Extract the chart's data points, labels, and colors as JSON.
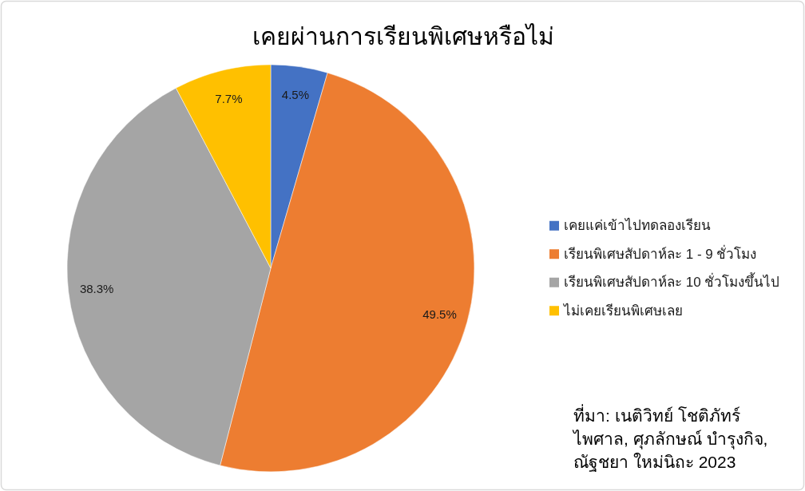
{
  "chart_data": {
    "type": "pie",
    "title": "เคยผ่านการเรียนพิเศษหรือไม่",
    "categories": [
      "เคยแค่เข้าไปทดลองเรียน",
      "เรียนพิเศษสัปดาห์ละ 1 - 9 ชั่วโมง",
      "เรียนพิเศษสัปดาห์ละ 10 ชั่วโมงขึ้นไป",
      "ไม่เคยเรียนพิเศษเลย"
    ],
    "values": [
      4.5,
      49.5,
      38.3,
      7.7
    ],
    "colors": [
      "#4472c4",
      "#ed7d31",
      "#a5a5a5",
      "#ffc000"
    ],
    "value_labels": [
      "4.5%",
      "49.5%",
      "38.3%",
      "7.7%"
    ],
    "legend": "right",
    "annotations": [
      "ที่มา: เนติวิทย์ โชติภัทร์ไพศาล, ศุภลักษณ์ บำรุงกิจ, ณัฐชยา ใหม่นิถะ 2023"
    ]
  }
}
